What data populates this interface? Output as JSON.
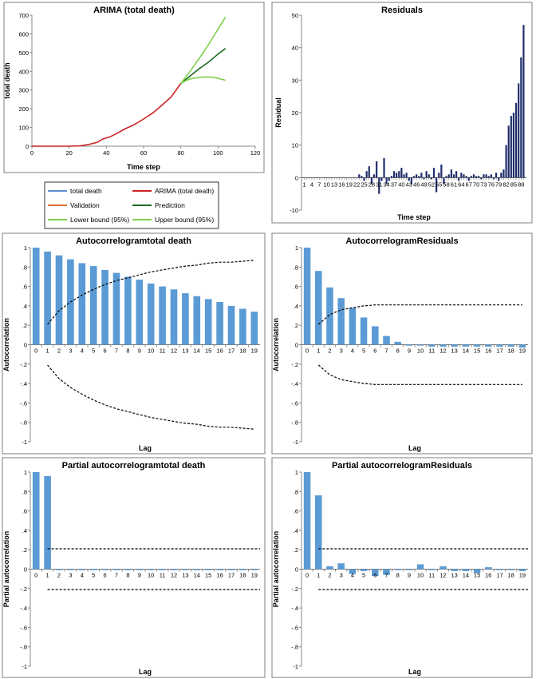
{
  "colors": {
    "total": "#5b8fd0",
    "arima": "#cc2222",
    "validation": "#e07030",
    "prediction": "#1e6b1e",
    "bounds": "#7fcf4c",
    "residual_bar": "#1f2d6b",
    "acf_bar": "#5b9bd5",
    "frame": "#7f7f7f",
    "conf": "#000000"
  },
  "legend": {
    "items": [
      {
        "label": "total death",
        "color": "#5b8fd0"
      },
      {
        "label": "ARIMA (total death)",
        "color": "#cc2222"
      },
      {
        "label": "Validation",
        "color": "#e07030"
      },
      {
        "label": "Prediction",
        "color": "#1e6b1e"
      },
      {
        "label": "Lower bound (95%)",
        "color": "#7fcf4c"
      },
      {
        "label": "Upper bound (95%)",
        "color": "#7fcf4c"
      }
    ]
  },
  "chart_data": [
    {
      "id": "arima",
      "type": "line",
      "title": "ARIMA (total death)",
      "xlabel": "Time step",
      "ylabel": "total death",
      "xlim": [
        0,
        120
      ],
      "ylim": [
        0,
        700
      ],
      "xticks": [
        0,
        20,
        40,
        60,
        80,
        100,
        120
      ],
      "yticks": [
        0,
        100,
        200,
        300,
        400,
        500,
        600,
        700
      ],
      "series": [
        {
          "name": "ARIMA (total death)",
          "color": "#cc2222",
          "x": [
            0,
            10,
            20,
            26,
            30,
            35,
            38,
            42,
            46,
            50,
            55,
            60,
            65,
            70,
            75,
            80
          ],
          "y": [
            0,
            0,
            0,
            2,
            8,
            20,
            38,
            50,
            70,
            92,
            115,
            145,
            178,
            220,
            265,
            335
          ]
        },
        {
          "name": "Prediction",
          "color": "#1e6b1e",
          "x": [
            80,
            85,
            90,
            95,
            100,
            104
          ],
          "y": [
            335,
            375,
            415,
            450,
            492,
            522
          ]
        },
        {
          "name": "Upper bound (95%)",
          "color": "#7fcf4c",
          "x": [
            80,
            85,
            90,
            95,
            100,
            104
          ],
          "y": [
            335,
            400,
            470,
            545,
            625,
            690
          ]
        },
        {
          "name": "Lower bound (95%)",
          "color": "#7fcf4c",
          "x": [
            80,
            83,
            86,
            90,
            94,
            98,
            101,
            104
          ],
          "y": [
            335,
            352,
            362,
            368,
            370,
            368,
            360,
            352
          ]
        }
      ]
    },
    {
      "id": "residuals",
      "type": "bar",
      "title": "Residuals",
      "xlabel": "Time step",
      "ylabel": "Residual",
      "ylim": [
        -10,
        50
      ],
      "yticks": [
        -10,
        0,
        10,
        20,
        30,
        40,
        50
      ],
      "xticklabels": [
        "1",
        "4",
        "7",
        "10",
        "13",
        "16",
        "19",
        "22",
        "25",
        "28",
        "31",
        "34",
        "37",
        "40",
        "43",
        "46",
        "49",
        "52",
        "55",
        "58",
        "61",
        "64",
        "67",
        "70",
        "73",
        "76",
        "79",
        "82",
        "85",
        "88"
      ],
      "x": [
        1,
        2,
        3,
        4,
        5,
        6,
        7,
        8,
        9,
        10,
        11,
        12,
        13,
        14,
        15,
        16,
        17,
        18,
        19,
        20,
        21,
        22,
        23,
        24,
        25,
        26,
        27,
        28,
        29,
        30,
        31,
        32,
        33,
        34,
        35,
        36,
        37,
        38,
        39,
        40,
        41,
        42,
        43,
        44,
        45,
        46,
        47,
        48,
        49,
        50,
        51,
        52,
        53,
        54,
        55,
        56,
        57,
        58,
        59,
        60,
        61,
        62,
        63,
        64,
        65,
        66,
        67,
        68,
        69,
        70,
        71,
        72,
        73,
        74,
        75,
        76,
        77,
        78,
        79,
        80,
        81,
        82,
        83,
        84,
        85,
        86,
        87,
        88,
        89
      ],
      "values": [
        0,
        0,
        0,
        0,
        0,
        0,
        0,
        0,
        0,
        0,
        0,
        0,
        0,
        0,
        0,
        0,
        0,
        0,
        0,
        0,
        0,
        0,
        1,
        0.5,
        -1,
        2,
        3.5,
        -2,
        1,
        5,
        -5,
        -1,
        6,
        -2,
        -1,
        0.5,
        2,
        1.5,
        2,
        3,
        1,
        1.5,
        -1,
        -2,
        0.5,
        1,
        0.5,
        1.5,
        -0.5,
        2,
        1,
        -0.5,
        3,
        -4.5,
        1.5,
        4,
        -2,
        0.5,
        1,
        2.5,
        1,
        2,
        -1,
        1.5,
        1,
        0.5,
        -1,
        0.5,
        1,
        0.5,
        0.5,
        -0.5,
        1,
        1,
        0.5,
        1,
        -0.5,
        1.5,
        -1,
        1.5,
        2.5,
        10,
        16,
        19,
        20,
        23,
        29,
        37,
        47
      ]
    },
    {
      "id": "acf-total",
      "type": "bar",
      "title": "Autocorrelogramtotal death",
      "xlabel": "Lag",
      "ylabel": "Autocorrelation",
      "ylim": [
        -1,
        1
      ],
      "yticks": [
        -1,
        -0.8,
        -0.6,
        -0.4,
        -0.2,
        0,
        0.2,
        0.4,
        0.6,
        0.8,
        1
      ],
      "categories": [
        "0",
        "1",
        "2",
        "3",
        "4",
        "5",
        "6",
        "7",
        "8",
        "9",
        "10",
        "11",
        "12",
        "13",
        "14",
        "15",
        "16",
        "17",
        "18",
        "19"
      ],
      "values": [
        1,
        0.96,
        0.92,
        0.88,
        0.84,
        0.81,
        0.77,
        0.74,
        0.7,
        0.67,
        0.63,
        0.6,
        0.57,
        0.53,
        0.5,
        0.47,
        0.44,
        0.4,
        0.37,
        0.34
      ],
      "confidence": [
        null,
        0.21,
        0.35,
        0.44,
        0.51,
        0.57,
        0.62,
        0.66,
        0.69,
        0.72,
        0.75,
        0.77,
        0.79,
        0.81,
        0.82,
        0.84,
        0.85,
        0.85,
        0.86,
        0.87
      ]
    },
    {
      "id": "acf-residuals",
      "type": "bar",
      "title": "AutocorrelogramResiduals",
      "xlabel": "Lag",
      "ylabel": "Autocorrelation",
      "ylim": [
        -1,
        1
      ],
      "yticks": [
        -1,
        -0.8,
        -0.6,
        -0.4,
        -0.2,
        0,
        0.2,
        0.4,
        0.6,
        0.8,
        1
      ],
      "categories": [
        "0",
        "1",
        "2",
        "3",
        "4",
        "5",
        "6",
        "7",
        "8",
        "9",
        "10",
        "11",
        "12",
        "13",
        "14",
        "15",
        "16",
        "17",
        "18",
        "19"
      ],
      "values": [
        1,
        0.76,
        0.59,
        0.48,
        0.38,
        0.28,
        0.19,
        0.09,
        0.03,
        -0.01,
        -0.01,
        -0.02,
        -0.02,
        -0.02,
        -0.02,
        -0.02,
        -0.02,
        -0.02,
        -0.02,
        -0.03
      ],
      "confidence": [
        null,
        0.21,
        0.31,
        0.36,
        0.38,
        0.4,
        0.41,
        0.41,
        0.41,
        0.41,
        0.41,
        0.41,
        0.41,
        0.41,
        0.41,
        0.41,
        0.41,
        0.41,
        0.41,
        0.41
      ]
    },
    {
      "id": "pacf-total",
      "type": "bar",
      "title": "Partial autocorrelogramtotal death",
      "xlabel": "Lag",
      "ylabel": "Partial autocorrelation",
      "ylim": [
        -1,
        1
      ],
      "yticks": [
        -1,
        -0.8,
        -0.6,
        -0.4,
        -0.2,
        0,
        0.2,
        0.4,
        0.6,
        0.8,
        1
      ],
      "categories": [
        "0",
        "1",
        "2",
        "3",
        "4",
        "5",
        "6",
        "7",
        "8",
        "9",
        "10",
        "11",
        "12",
        "13",
        "14",
        "15",
        "16",
        "17",
        "18",
        "19"
      ],
      "values": [
        1,
        0.96,
        -0.01,
        -0.01,
        -0.01,
        -0.01,
        -0.01,
        -0.01,
        -0.01,
        -0.01,
        -0.01,
        -0.01,
        -0.01,
        -0.01,
        -0.01,
        -0.01,
        -0.01,
        -0.01,
        -0.01,
        -0.01
      ],
      "confidence_band": 0.21
    },
    {
      "id": "pacf-residuals",
      "type": "bar",
      "title": "Partial autocorrelogramResiduals",
      "xlabel": "Lag",
      "ylabel": "Partial autocorrelation",
      "ylim": [
        -1,
        1
      ],
      "yticks": [
        -1,
        -0.8,
        -0.6,
        -0.4,
        -0.2,
        0,
        0.2,
        0.4,
        0.6,
        0.8,
        1
      ],
      "categories": [
        "0",
        "1",
        "2",
        "3",
        "4",
        "5",
        "6",
        "7",
        "8",
        "9",
        "10",
        "11",
        "12",
        "13",
        "14",
        "15",
        "16",
        "17",
        "18",
        "19"
      ],
      "values": [
        1,
        0.76,
        0.03,
        0.06,
        -0.05,
        -0.02,
        -0.07,
        -0.06,
        -0.01,
        -0.01,
        0.05,
        -0.01,
        0.03,
        -0.02,
        -0.02,
        -0.04,
        0.02,
        -0.01,
        -0.01,
        -0.02
      ],
      "confidence_band": 0.21
    }
  ]
}
